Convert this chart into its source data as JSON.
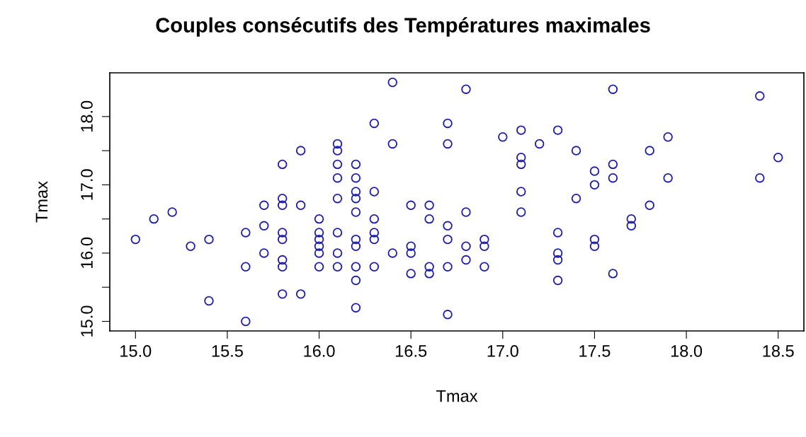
{
  "chart_data": {
    "type": "scatter",
    "title": "Couples consécutifs des Températures maximales",
    "xlabel": "Tmax",
    "ylabel": "Tmax",
    "x": [
      15.0,
      15.1,
      15.2,
      15.3,
      15.4,
      15.4,
      15.6,
      15.6,
      15.6,
      15.7,
      15.7,
      15.7,
      15.8,
      15.8,
      15.8,
      15.8,
      15.8,
      15.8,
      15.8,
      15.8,
      15.9,
      15.9,
      15.9,
      16.0,
      16.0,
      16.0,
      16.0,
      16.0,
      16.0,
      16.1,
      16.1,
      16.1,
      16.1,
      16.1,
      16.1,
      16.1,
      16.1,
      16.2,
      16.2,
      16.2,
      16.2,
      16.2,
      16.2,
      16.2,
      16.2,
      16.2,
      16.2,
      16.3,
      16.3,
      16.3,
      16.3,
      16.3,
      16.3,
      16.4,
      16.4,
      16.4,
      16.5,
      16.5,
      16.5,
      16.5,
      16.6,
      16.6,
      16.6,
      16.6,
      16.7,
      16.7,
      16.7,
      16.7,
      16.7,
      16.7,
      16.8,
      16.8,
      16.8,
      16.8,
      16.9,
      16.9,
      16.9,
      17.0,
      17.1,
      17.1,
      17.1,
      17.1,
      17.1,
      17.2,
      17.3,
      17.3,
      17.3,
      17.3,
      17.3,
      17.4,
      17.4,
      17.5,
      17.5,
      17.5,
      17.5,
      17.6,
      17.6,
      17.6,
      17.6,
      17.7,
      17.7,
      17.8,
      17.8,
      17.9,
      17.9,
      18.4,
      18.4,
      18.5
    ],
    "values": [
      16.2,
      16.5,
      16.6,
      16.1,
      16.2,
      15.3,
      16.3,
      15.8,
      15.0,
      16.7,
      16.4,
      16.0,
      17.3,
      16.8,
      16.7,
      16.3,
      16.2,
      15.9,
      15.8,
      15.4,
      17.5,
      16.7,
      15.4,
      16.5,
      16.3,
      16.2,
      16.1,
      16.0,
      15.8,
      17.6,
      17.5,
      17.3,
      17.1,
      16.8,
      16.3,
      16.0,
      15.8,
      17.3,
      17.1,
      16.9,
      16.8,
      16.6,
      16.2,
      16.1,
      15.8,
      15.6,
      15.2,
      17.9,
      16.9,
      16.5,
      16.3,
      16.2,
      15.8,
      18.5,
      17.6,
      16.0,
      16.7,
      16.1,
      16.0,
      15.7,
      16.7,
      16.5,
      15.8,
      15.7,
      17.9,
      17.6,
      16.4,
      16.2,
      15.8,
      15.1,
      18.4,
      16.6,
      16.1,
      15.9,
      16.2,
      16.1,
      15.8,
      17.7,
      17.8,
      17.4,
      17.3,
      16.9,
      16.6,
      17.6,
      17.8,
      16.3,
      16.0,
      15.9,
      15.6,
      17.5,
      16.8,
      17.2,
      17.0,
      16.2,
      16.1,
      18.4,
      17.3,
      17.1,
      15.7,
      16.5,
      16.4,
      17.5,
      16.7,
      17.7,
      17.1,
      18.3,
      17.1,
      17.4
    ],
    "color": "#1c1ca8",
    "marker": "circle",
    "grid": false,
    "xlim": [
      14.86,
      18.64
    ],
    "ylim": [
      14.86,
      18.64
    ],
    "xticks": [
      {
        "value": 15,
        "label": "15.0"
      },
      15.5,
      {
        "value": 16,
        "label": "16.0"
      },
      16.5,
      {
        "value": 17,
        "label": "17.0"
      },
      17.5,
      {
        "value": 18,
        "label": "18.0"
      },
      18.5
    ],
    "yticks": [
      {
        "value": 15,
        "label": "15.0"
      },
      {
        "value": 15.5,
        "label": null
      },
      {
        "value": 16,
        "label": "16.0"
      },
      {
        "value": 16.5,
        "label": null
      },
      {
        "value": 17,
        "label": "17.0"
      },
      {
        "value": 17.5,
        "label": null
      },
      {
        "value": 18,
        "label": "18.0"
      }
    ]
  }
}
